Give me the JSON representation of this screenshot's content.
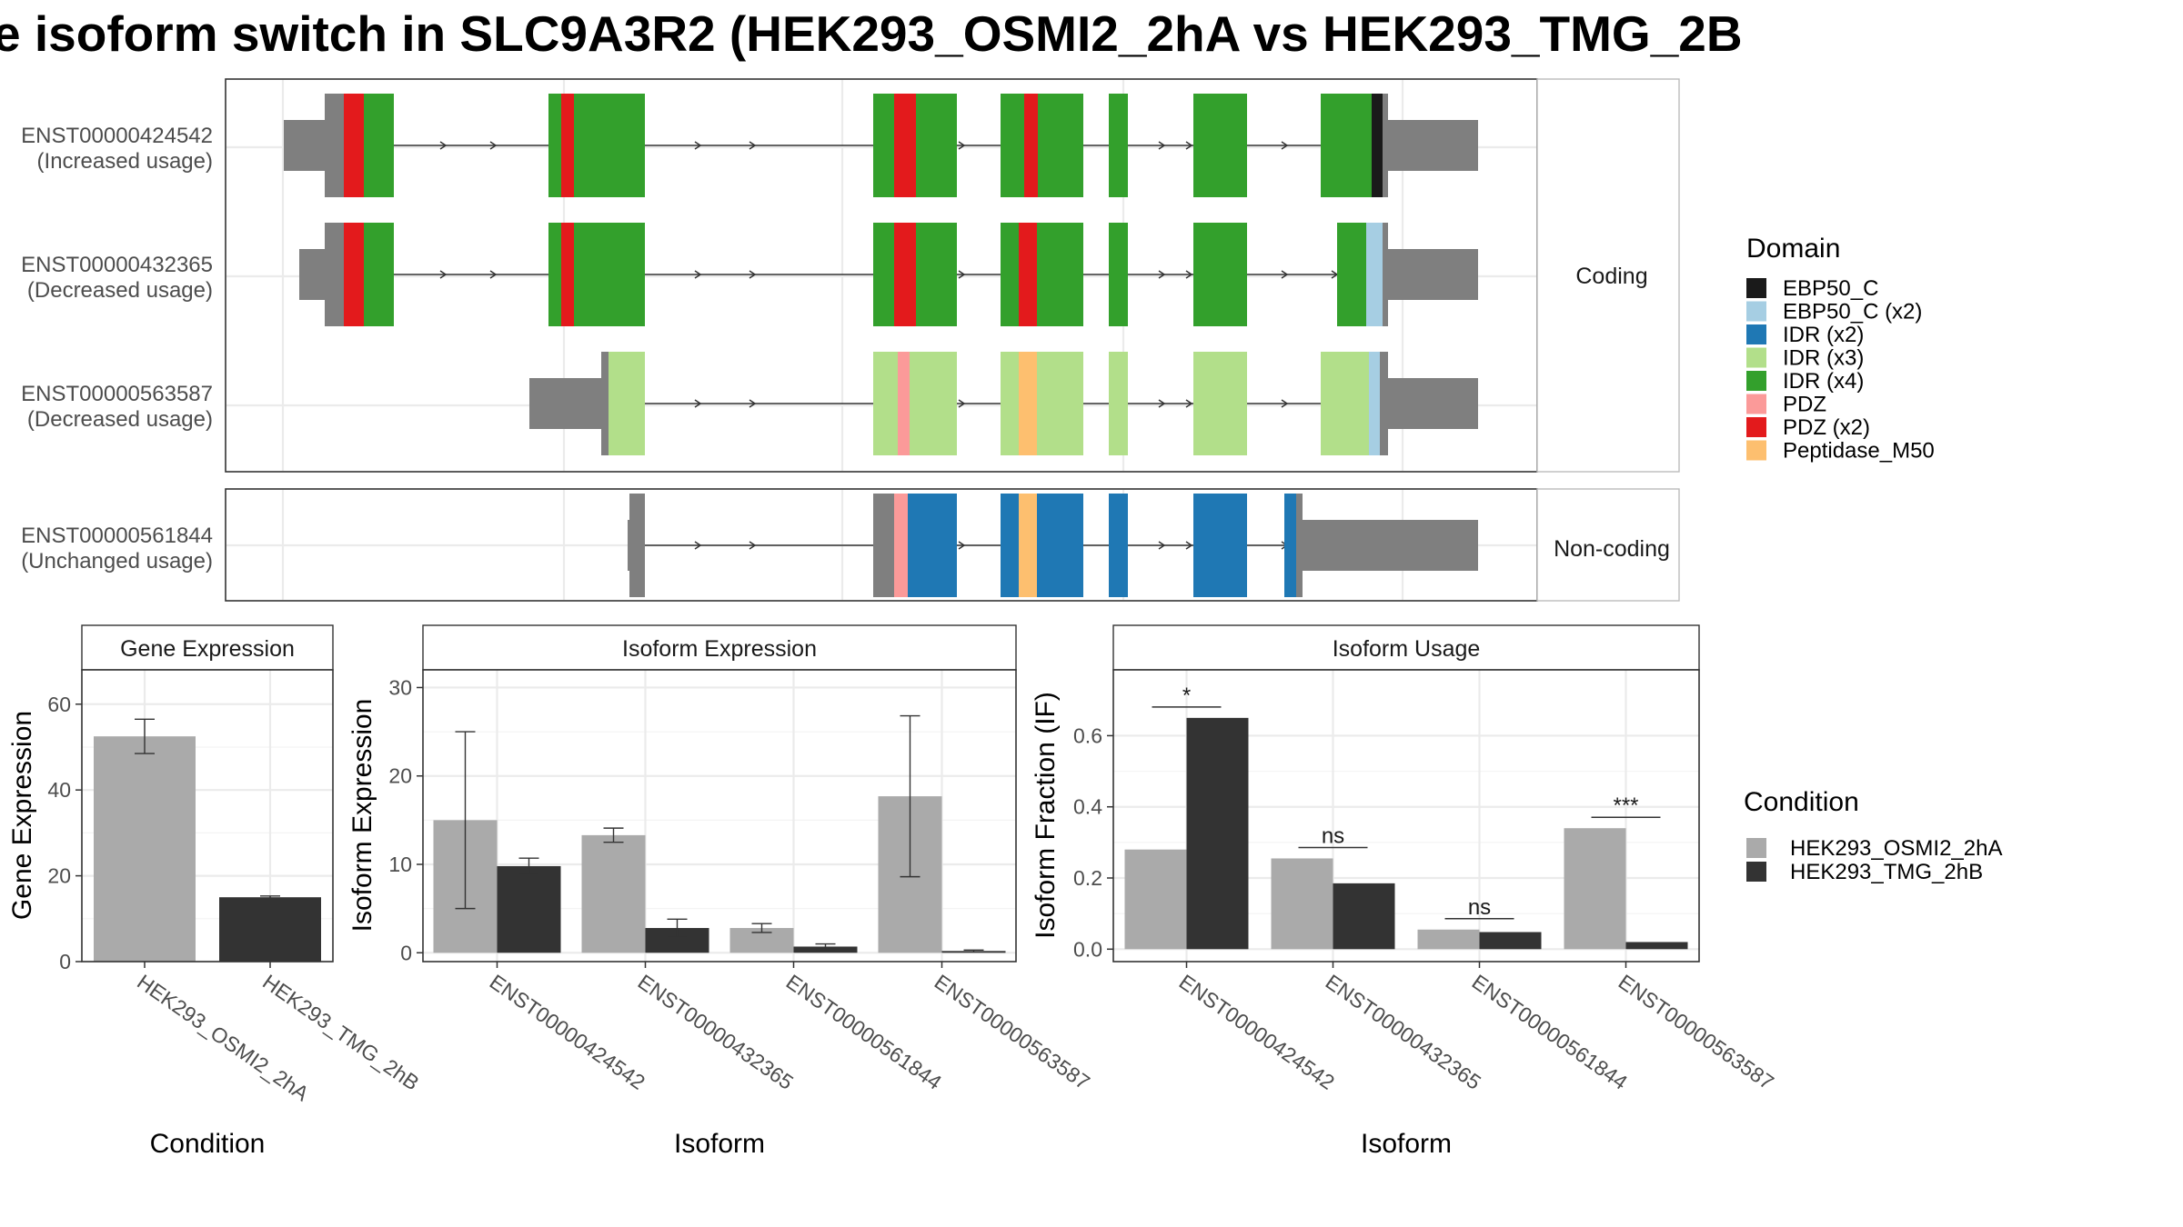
{
  "title": "e isoform switch in SLC9A3R2 (HEK293_OSMI2_2hA vs HEK293_TMG_2B",
  "structure": {
    "facets": [
      "Coding",
      "Non-coding"
    ],
    "transcripts": [
      {
        "id": "ENST00000424542",
        "usage": "(Increased usage)"
      },
      {
        "id": "ENST00000432365",
        "usage": "(Decreased usage)"
      },
      {
        "id": "ENST00000563587",
        "usage": "(Decreased usage)"
      },
      {
        "id": "ENST00000561844",
        "usage": "(Unchanged usage)"
      }
    ]
  },
  "domain_legend": {
    "title": "Domain",
    "items": [
      {
        "label": "EBP50_C",
        "color": "#1a1a1a"
      },
      {
        "label": "EBP50_C (x2)",
        "color": "#a6cee3"
      },
      {
        "label": "IDR (x2)",
        "color": "#1f78b4"
      },
      {
        "label": "IDR (x3)",
        "color": "#b2df8a"
      },
      {
        "label": "IDR (x4)",
        "color": "#33a02c"
      },
      {
        "label": "PDZ",
        "color": "#fb9a99"
      },
      {
        "label": "PDZ (x2)",
        "color": "#e31a1c"
      },
      {
        "label": "Peptidase_M50",
        "color": "#fdbf6f"
      }
    ]
  },
  "condition_legend": {
    "title": "Condition",
    "items": [
      {
        "label": "HEK293_OSMI2_2hA",
        "color": "#aaaaaa"
      },
      {
        "label": "HEK293_TMG_2hB",
        "color": "#333333"
      }
    ]
  },
  "chart_data": [
    {
      "type": "bar",
      "title": "Gene Expression",
      "xlabel": "Condition",
      "ylabel": "Gene Expression",
      "categories": [
        "HEK293_OSMI2_2hA",
        "HEK293_TMG_2hB"
      ],
      "values": [
        52.5,
        15
      ],
      "errors": [
        [
          48.5,
          56.5
        ],
        [
          14.7,
          15.3
        ]
      ],
      "colors": [
        "#aaaaaa",
        "#333333"
      ],
      "ylim": [
        0,
        68
      ],
      "yticks": [
        0,
        20,
        40,
        60
      ]
    },
    {
      "type": "bar",
      "title": "Isoform Expression",
      "xlabel": "Isoform",
      "ylabel": "Isoform Expression",
      "categories": [
        "ENST00000424542",
        "ENST00000432365",
        "ENST00000561844",
        "ENST00000563587"
      ],
      "series": [
        {
          "values": [
            15,
            13.3,
            2.8,
            17.7
          ],
          "errors": [
            [
              5,
              25
            ],
            [
              12.5,
              14.1
            ],
            [
              2.3,
              3.3
            ],
            [
              8.6,
              26.8
            ]
          ]
        },
        {
          "values": [
            9.8,
            2.8,
            0.7,
            0.2
          ],
          "errors": [
            [
              9,
              10.7
            ],
            [
              1.8,
              3.8
            ],
            [
              0.4,
              1.0
            ],
            [
              0.1,
              0.3
            ]
          ]
        }
      ],
      "ylim": [
        -1,
        32
      ],
      "yticks": [
        0,
        10,
        20,
        30
      ]
    },
    {
      "type": "bar",
      "title": "Isoform Usage",
      "xlabel": "Isoform",
      "ylabel": "Isoform Fraction (IF)",
      "categories": [
        "ENST00000424542",
        "ENST00000432365",
        "ENST00000561844",
        "ENST00000563587"
      ],
      "series": [
        {
          "values": [
            0.28,
            0.255,
            0.055,
            0.34
          ]
        },
        {
          "values": [
            0.65,
            0.185,
            0.048,
            0.02
          ]
        }
      ],
      "significance": [
        "*",
        "ns",
        "ns",
        "***"
      ],
      "ylim": [
        -0.035,
        0.785
      ],
      "yticks": [
        0.0,
        0.2,
        0.4,
        0.6
      ],
      "ytick_labels": [
        "0.0",
        "0.2",
        "0.4",
        "0.6"
      ]
    }
  ]
}
